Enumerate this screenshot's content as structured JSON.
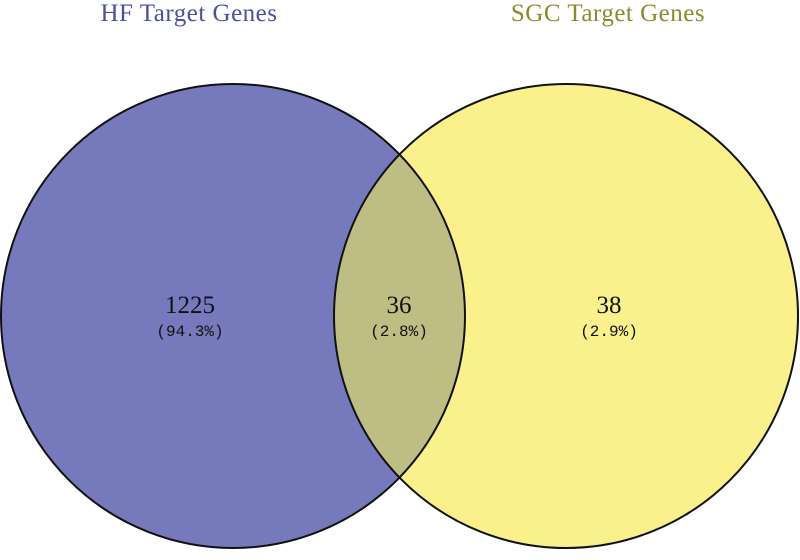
{
  "venn": {
    "sets": [
      {
        "title": "HF Target Genes",
        "color": "#7679bb",
        "title_color": "#4b4f9e"
      },
      {
        "title": "SGC Target Genes",
        "color": "#faf08c",
        "title_color": "#8c8a2e"
      }
    ],
    "overlap_color": "#bebd84",
    "outline_color": "#111111",
    "regions": {
      "left_only": {
        "count": "1225",
        "percent": "(94.3%)"
      },
      "intersection": {
        "count": "36",
        "percent": "(2.8%)"
      },
      "right_only": {
        "count": "38",
        "percent": "(2.9%)"
      }
    }
  }
}
